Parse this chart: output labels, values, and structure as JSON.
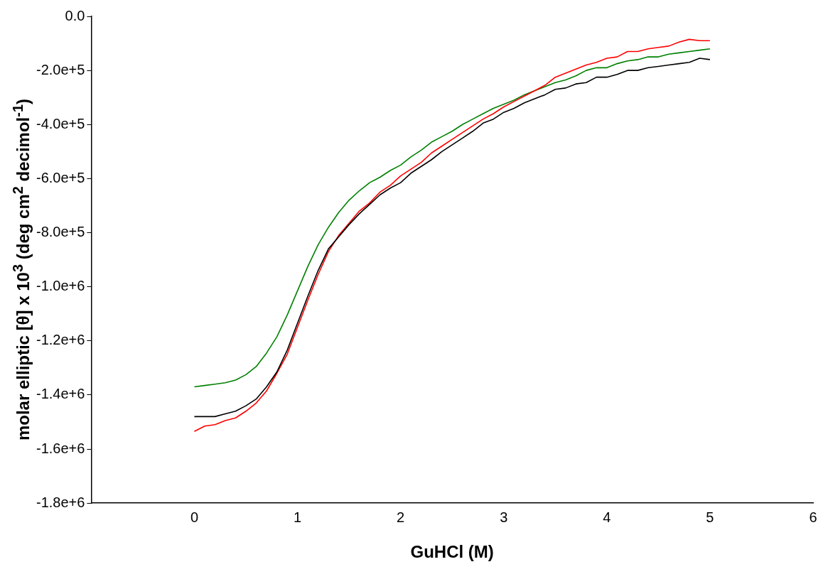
{
  "chart_data": {
    "type": "line",
    "xlabel": "GuHCl (M)",
    "ylabel": "molar elliptic [θ] x 10$^{3}$ (deg cm$^{2}$ decimol$^{-1}$)",
    "x": [
      0,
      0.1,
      0.2,
      0.3,
      0.4,
      0.5,
      0.6,
      0.7,
      0.8,
      0.9,
      1,
      1.1,
      1.2,
      1.3,
      1.4,
      1.5,
      1.6,
      1.7,
      1.8,
      1.9,
      2,
      2.1,
      2.2,
      2.3,
      2.4,
      2.5,
      2.6,
      2.7,
      2.8,
      2.9,
      3,
      3.1,
      3.2,
      3.3,
      3.4,
      3.5,
      3.6,
      3.7,
      3.8,
      3.9,
      4,
      4.1,
      4.2,
      4.3,
      4.4,
      4.5,
      4.6,
      4.7,
      4.8,
      4.9,
      5
    ],
    "series": [
      {
        "color": "#000000",
        "values": [
          -1480000,
          -1480000,
          -1480000,
          -1470000,
          -1460000,
          -1440000,
          -1415000,
          -1370000,
          -1315000,
          -1235000,
          -1135000,
          -1035000,
          -940000,
          -860000,
          -815000,
          -770000,
          -730000,
          -695000,
          -660000,
          -635000,
          -615000,
          -580000,
          -555000,
          -530000,
          -500000,
          -475000,
          -450000,
          -425000,
          -395000,
          -380000,
          -355000,
          -340000,
          -320000,
          -305000,
          -290000,
          -270000,
          -265000,
          -250000,
          -245000,
          -225000,
          -225000,
          -215000,
          -200000,
          -200000,
          -190000,
          -185000,
          -180000,
          -175000,
          -170000,
          -155000,
          -160000
        ]
      },
      {
        "color": "#ff0000",
        "values": [
          -1535000,
          -1515000,
          -1510000,
          -1495000,
          -1485000,
          -1460000,
          -1430000,
          -1385000,
          -1320000,
          -1250000,
          -1150000,
          -1050000,
          -955000,
          -870000,
          -810000,
          -765000,
          -720000,
          -690000,
          -650000,
          -625000,
          -590000,
          -565000,
          -540000,
          -505000,
          -480000,
          -455000,
          -430000,
          -405000,
          -380000,
          -360000,
          -335000,
          -315000,
          -295000,
          -275000,
          -255000,
          -225000,
          -210000,
          -195000,
          -180000,
          -170000,
          -155000,
          -150000,
          -130000,
          -130000,
          -120000,
          -115000,
          -110000,
          -95000,
          -85000,
          -90000,
          -90000
        ]
      },
      {
        "color": "#008000",
        "values": [
          -1370000,
          -1365000,
          -1360000,
          -1355000,
          -1345000,
          -1325000,
          -1295000,
          -1245000,
          -1185000,
          -1105000,
          -1015000,
          -925000,
          -845000,
          -780000,
          -725000,
          -680000,
          -645000,
          -615000,
          -595000,
          -570000,
          -550000,
          -520000,
          -495000,
          -465000,
          -445000,
          -425000,
          -400000,
          -380000,
          -360000,
          -340000,
          -325000,
          -310000,
          -290000,
          -275000,
          -260000,
          -245000,
          -235000,
          -220000,
          -200000,
          -190000,
          -190000,
          -175000,
          -165000,
          -160000,
          -150000,
          -150000,
          -140000,
          -135000,
          -130000,
          -125000,
          -120000
        ]
      }
    ],
    "xlim": [
      -1,
      6
    ],
    "xticks": [
      0,
      1,
      2,
      3,
      4,
      5,
      6
    ],
    "ylim": [
      -1800000,
      0
    ],
    "yticks": [
      {
        "value": -1800000,
        "label": "-1.8e+6"
      },
      {
        "value": -1600000,
        "label": "-1.6e+6"
      },
      {
        "value": -1400000,
        "label": "-1.4e+6"
      },
      {
        "value": -1200000,
        "label": "-1.2e+6"
      },
      {
        "value": -1000000,
        "label": "-1.0e+6"
      },
      {
        "value": -800000,
        "label": "-8.0e+5"
      },
      {
        "value": -600000,
        "label": "-6.0e+5"
      },
      {
        "value": -400000,
        "label": "-4.0e+5"
      },
      {
        "value": -200000,
        "label": "-2.0e+5"
      },
      {
        "value": 0,
        "label": "0.0"
      }
    ],
    "grid": false,
    "legend": false,
    "marker": "none",
    "line_style": "solid"
  }
}
